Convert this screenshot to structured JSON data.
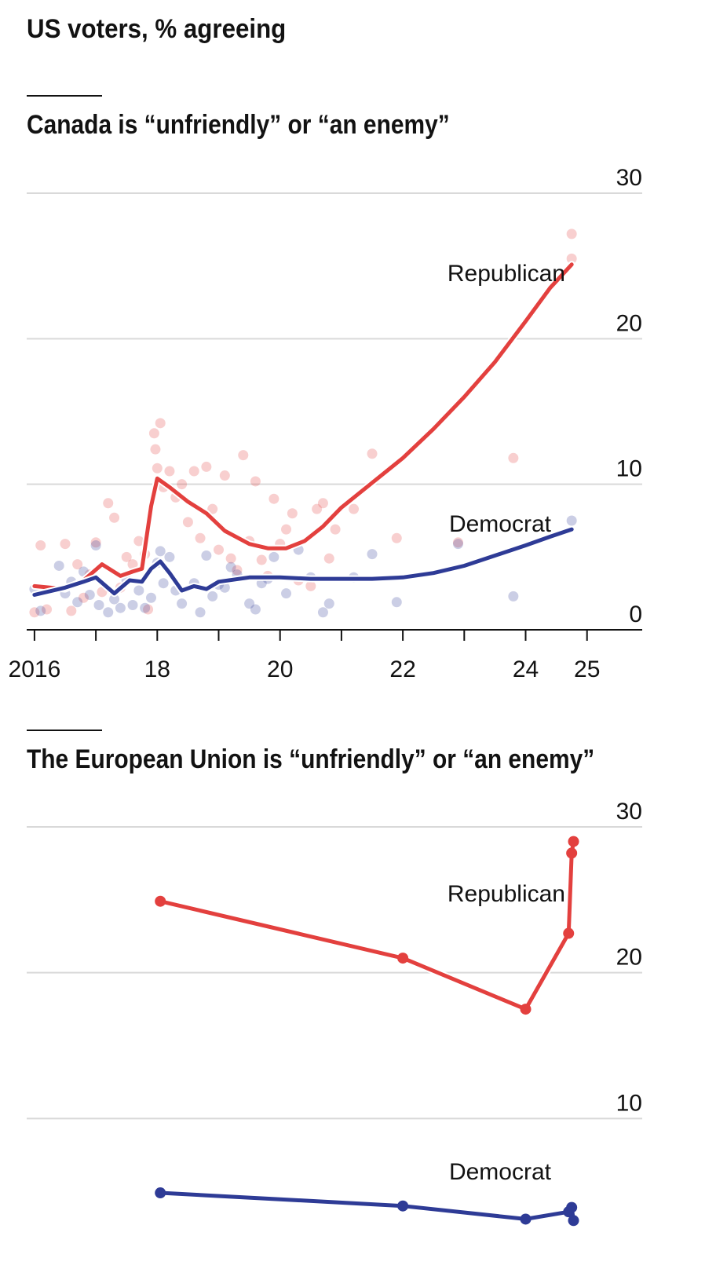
{
  "title": "US voters, % agreeing",
  "colors": {
    "republican": "#e3403e",
    "democrat": "#2e3b96",
    "grid": "#d9d9d9",
    "axis": "#121212"
  },
  "chart_data": [
    {
      "type": "line",
      "title": "Canada is “unfriendly” or “an enemy”",
      "xlabel": "",
      "ylabel": "",
      "ylim": [
        0,
        30
      ],
      "xlim": [
        2015.95,
        2025.95
      ],
      "y_ticks": [
        0,
        10,
        20,
        30
      ],
      "x_ticks": [
        2016,
        2017,
        2018,
        2019,
        2020,
        2021,
        2022,
        2023,
        2024,
        2025
      ],
      "x_tick_labels": [
        {
          "x": 2016,
          "label": "2016"
        },
        {
          "x": 2018,
          "label": "18"
        },
        {
          "x": 2020,
          "label": "20"
        },
        {
          "x": 2022,
          "label": "22"
        },
        {
          "x": 2024,
          "label": "24"
        },
        {
          "x": 2025,
          "label": "25"
        }
      ],
      "grid": true,
      "series": [
        {
          "name": "Republican",
          "color": "#e3403e",
          "trend": [
            [
              2016.0,
              3.0
            ],
            [
              2016.5,
              2.8
            ],
            [
              2016.8,
              3.4
            ],
            [
              2017.1,
              4.5
            ],
            [
              2017.4,
              3.7
            ],
            [
              2017.6,
              4.0
            ],
            [
              2017.75,
              4.2
            ],
            [
              2017.9,
              8.5
            ],
            [
              2018.0,
              10.4
            ],
            [
              2018.2,
              9.8
            ],
            [
              2018.5,
              8.8
            ],
            [
              2018.8,
              8.0
            ],
            [
              2019.1,
              6.8
            ],
            [
              2019.5,
              5.9
            ],
            [
              2019.8,
              5.6
            ],
            [
              2020.1,
              5.6
            ],
            [
              2020.4,
              6.1
            ],
            [
              2020.7,
              7.1
            ],
            [
              2021.0,
              8.4
            ],
            [
              2021.5,
              10.1
            ],
            [
              2022.0,
              11.8
            ],
            [
              2022.5,
              13.8
            ],
            [
              2023.0,
              16.0
            ],
            [
              2023.5,
              18.4
            ],
            [
              2024.0,
              21.2
            ],
            [
              2024.4,
              23.5
            ],
            [
              2024.75,
              25.1
            ]
          ],
          "points": [
            [
              2016.0,
              1.2
            ],
            [
              2016.1,
              5.8
            ],
            [
              2016.2,
              1.4
            ],
            [
              2016.5,
              5.9
            ],
            [
              2016.6,
              1.3
            ],
            [
              2016.7,
              4.5
            ],
            [
              2016.8,
              2.2
            ],
            [
              2016.9,
              3.8
            ],
            [
              2017.0,
              6.0
            ],
            [
              2017.1,
              2.6
            ],
            [
              2017.2,
              8.7
            ],
            [
              2017.3,
              7.7
            ],
            [
              2017.4,
              2.9
            ],
            [
              2017.5,
              5.0
            ],
            [
              2017.6,
              4.5
            ],
            [
              2017.7,
              6.1
            ],
            [
              2017.8,
              5.2
            ],
            [
              2017.85,
              1.4
            ],
            [
              2017.95,
              13.5
            ],
            [
              2017.97,
              12.4
            ],
            [
              2018.0,
              11.1
            ],
            [
              2018.05,
              14.2
            ],
            [
              2018.1,
              9.8
            ],
            [
              2018.2,
              10.9
            ],
            [
              2018.3,
              9.1
            ],
            [
              2018.4,
              10.0
            ],
            [
              2018.5,
              7.4
            ],
            [
              2018.6,
              10.9
            ],
            [
              2018.7,
              6.3
            ],
            [
              2018.8,
              11.2
            ],
            [
              2018.9,
              8.3
            ],
            [
              2019.0,
              5.5
            ],
            [
              2019.1,
              10.6
            ],
            [
              2019.2,
              4.9
            ],
            [
              2019.3,
              4.1
            ],
            [
              2019.4,
              12.0
            ],
            [
              2019.5,
              6.1
            ],
            [
              2019.6,
              10.2
            ],
            [
              2019.7,
              4.8
            ],
            [
              2019.8,
              3.7
            ],
            [
              2019.9,
              9.0
            ],
            [
              2020.0,
              5.9
            ],
            [
              2020.1,
              6.9
            ],
            [
              2020.2,
              8.0
            ],
            [
              2020.3,
              3.4
            ],
            [
              2020.5,
              3.0
            ],
            [
              2020.6,
              8.3
            ],
            [
              2020.7,
              8.7
            ],
            [
              2020.8,
              4.9
            ],
            [
              2020.9,
              6.9
            ],
            [
              2021.2,
              8.3
            ],
            [
              2021.5,
              12.1
            ],
            [
              2021.9,
              6.3
            ],
            [
              2022.9,
              6.0
            ],
            [
              2023.8,
              11.8
            ],
            [
              2024.75,
              27.2
            ],
            [
              2024.75,
              25.5
            ]
          ]
        },
        {
          "name": "Democrat",
          "color": "#2e3b96",
          "trend": [
            [
              2016.0,
              2.4
            ],
            [
              2016.5,
              2.9
            ],
            [
              2016.8,
              3.3
            ],
            [
              2017.0,
              3.6
            ],
            [
              2017.3,
              2.5
            ],
            [
              2017.55,
              3.4
            ],
            [
              2017.75,
              3.3
            ],
            [
              2017.9,
              4.2
            ],
            [
              2018.05,
              4.7
            ],
            [
              2018.2,
              3.9
            ],
            [
              2018.4,
              2.7
            ],
            [
              2018.6,
              3.0
            ],
            [
              2018.8,
              2.8
            ],
            [
              2019.0,
              3.3
            ],
            [
              2019.5,
              3.6
            ],
            [
              2020.0,
              3.6
            ],
            [
              2020.5,
              3.5
            ],
            [
              2021.0,
              3.5
            ],
            [
              2021.5,
              3.5
            ],
            [
              2022.0,
              3.6
            ],
            [
              2022.5,
              3.9
            ],
            [
              2023.0,
              4.4
            ],
            [
              2023.5,
              5.1
            ],
            [
              2024.0,
              5.8
            ],
            [
              2024.4,
              6.4
            ],
            [
              2024.75,
              6.9
            ]
          ],
          "points": [
            [
              2016.0,
              2.8
            ],
            [
              2016.1,
              1.3
            ],
            [
              2016.4,
              4.4
            ],
            [
              2016.5,
              2.5
            ],
            [
              2016.6,
              3.3
            ],
            [
              2016.7,
              1.9
            ],
            [
              2016.8,
              4.0
            ],
            [
              2016.9,
              2.4
            ],
            [
              2017.0,
              5.8
            ],
            [
              2017.05,
              1.7
            ],
            [
              2017.2,
              1.2
            ],
            [
              2017.3,
              2.1
            ],
            [
              2017.4,
              1.5
            ],
            [
              2017.5,
              3.4
            ],
            [
              2017.6,
              1.7
            ],
            [
              2017.7,
              2.7
            ],
            [
              2017.8,
              1.5
            ],
            [
              2017.9,
              2.2
            ],
            [
              2018.0,
              4.6
            ],
            [
              2018.05,
              5.4
            ],
            [
              2018.1,
              3.2
            ],
            [
              2018.2,
              5.0
            ],
            [
              2018.3,
              2.7
            ],
            [
              2018.4,
              1.8
            ],
            [
              2018.6,
              3.2
            ],
            [
              2018.7,
              1.2
            ],
            [
              2018.8,
              5.1
            ],
            [
              2018.9,
              2.3
            ],
            [
              2019.0,
              3.1
            ],
            [
              2019.1,
              2.9
            ],
            [
              2019.2,
              4.3
            ],
            [
              2019.3,
              3.8
            ],
            [
              2019.5,
              1.8
            ],
            [
              2019.6,
              1.4
            ],
            [
              2019.7,
              3.2
            ],
            [
              2019.8,
              3.5
            ],
            [
              2019.9,
              5.0
            ],
            [
              2020.1,
              2.5
            ],
            [
              2020.3,
              5.5
            ],
            [
              2020.5,
              3.6
            ],
            [
              2020.7,
              1.2
            ],
            [
              2020.8,
              1.8
            ],
            [
              2021.2,
              3.6
            ],
            [
              2021.5,
              5.2
            ],
            [
              2021.9,
              1.9
            ],
            [
              2022.9,
              5.9
            ],
            [
              2023.8,
              2.3
            ],
            [
              2024.75,
              7.5
            ]
          ]
        }
      ]
    },
    {
      "type": "line",
      "title": "The European Union is “unfriendly” or “an enemy”",
      "xlabel": "",
      "ylabel": "",
      "ylim": [
        0,
        30
      ],
      "xlim": [
        2015.95,
        2025.95
      ],
      "y_ticks": [
        10,
        20,
        30
      ],
      "grid": true,
      "series": [
        {
          "name": "Republican",
          "color": "#e3403e",
          "points": [
            [
              2018.05,
              24.9
            ],
            [
              2022.0,
              21.0
            ],
            [
              2024.0,
              17.5
            ],
            [
              2024.7,
              22.7
            ],
            [
              2024.75,
              28.2
            ],
            [
              2024.78,
              29.0
            ]
          ]
        },
        {
          "name": "Democrat",
          "color": "#2e3b96",
          "points": [
            [
              2018.05,
              4.9
            ],
            [
              2022.0,
              4.0
            ],
            [
              2024.0,
              3.1
            ],
            [
              2024.7,
              3.6
            ],
            [
              2024.75,
              3.9
            ],
            [
              2024.78,
              3.0
            ]
          ]
        }
      ]
    }
  ]
}
